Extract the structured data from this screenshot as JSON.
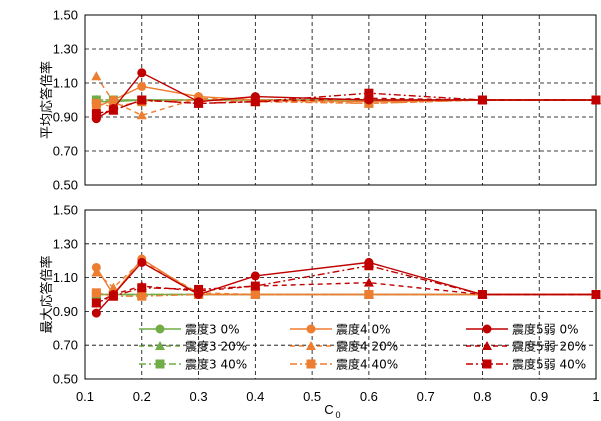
{
  "chart_data": [
    {
      "type": "line",
      "ylabel": "平均応答倍率",
      "ylim": [
        0.5,
        1.5
      ],
      "yticks": [
        "1.50",
        "1.30",
        "1.10",
        "0.90",
        "0.70",
        "0.50"
      ],
      "xlim": [
        0.1,
        1.0
      ],
      "grid": true,
      "series": [
        {
          "name": "震度3 0%",
          "color": "#70ad47",
          "dash": "solid",
          "marker": "circle",
          "x": [
            0.12,
            0.15,
            0.2,
            0.3,
            0.4,
            0.6,
            0.8,
            1.0
          ],
          "y": [
            0.99,
            0.99,
            1.0,
            1.0,
            1.0,
            1.0,
            1.0,
            1.0
          ]
        },
        {
          "name": "震度3 20%",
          "color": "#70ad47",
          "dash": "dashed",
          "marker": "triangle",
          "x": [
            0.12,
            0.15,
            0.2,
            0.3,
            0.4,
            0.6,
            0.8,
            1.0
          ],
          "y": [
            1.0,
            1.0,
            1.0,
            1.0,
            1.0,
            1.0,
            1.0,
            1.0
          ]
        },
        {
          "name": "震度3 40%",
          "color": "#70ad47",
          "dash": "dashdot",
          "marker": "square",
          "x": [
            0.12,
            0.15,
            0.2,
            0.3,
            0.4,
            0.6,
            0.8,
            1.0
          ],
          "y": [
            1.0,
            1.0,
            1.0,
            1.0,
            1.0,
            1.0,
            1.0,
            1.0
          ]
        },
        {
          "name": "震度4 0%",
          "color": "#ed7d31",
          "dash": "solid",
          "marker": "circle",
          "x": [
            0.12,
            0.15,
            0.2,
            0.3,
            0.4,
            0.6,
            0.8,
            1.0
          ],
          "y": [
            0.96,
            1.0,
            1.08,
            1.02,
            1.0,
            0.99,
            1.0,
            1.0
          ]
        },
        {
          "name": "震度4 20%",
          "color": "#ed7d31",
          "dash": "dashed",
          "marker": "triangle",
          "x": [
            0.12,
            0.15,
            0.2,
            0.3,
            0.4,
            0.6,
            0.8,
            1.0
          ],
          "y": [
            1.14,
            0.99,
            0.91,
            1.01,
            1.0,
            0.98,
            1.0,
            1.0
          ]
        },
        {
          "name": "震度4 40%",
          "color": "#ed7d31",
          "dash": "dashdot",
          "marker": "square",
          "x": [
            0.12,
            0.15,
            0.2,
            0.3,
            0.4,
            0.6,
            0.8,
            1.0
          ],
          "y": [
            0.98,
            0.96,
            0.99,
            1.0,
            0.99,
            0.98,
            1.0,
            1.0
          ]
        },
        {
          "name": "震度5弱 0%",
          "color": "#c00000",
          "dash": "solid",
          "marker": "circle",
          "x": [
            0.12,
            0.15,
            0.2,
            0.3,
            0.4,
            0.6,
            0.8,
            1.0
          ],
          "y": [
            0.89,
            0.95,
            1.16,
            0.99,
            1.02,
            1.0,
            1.0,
            1.0
          ]
        },
        {
          "name": "震度5弱 20%",
          "color": "#c00000",
          "dash": "dashed",
          "marker": "triangle",
          "x": [
            0.12,
            0.15,
            0.2,
            0.3,
            0.4,
            0.6,
            0.8,
            1.0
          ],
          "y": [
            0.91,
            0.94,
            1.0,
            0.98,
            0.99,
            1.01,
            1.0,
            1.0
          ]
        },
        {
          "name": "震度5弱 40%",
          "color": "#c00000",
          "dash": "dashdot",
          "marker": "square",
          "x": [
            0.12,
            0.15,
            0.2,
            0.3,
            0.4,
            0.6,
            0.8,
            1.0
          ],
          "y": [
            0.92,
            0.94,
            1.0,
            0.98,
            0.99,
            1.04,
            1.0,
            1.0
          ]
        }
      ]
    },
    {
      "type": "line",
      "ylabel": "最大応答倍率",
      "ylim": [
        0.5,
        1.5
      ],
      "yticks": [
        "1.50",
        "1.30",
        "1.10",
        "0.90",
        "0.70",
        "0.50"
      ],
      "xlabel_main": "C",
      "xlabel_sub": "0",
      "xlim": [
        0.1,
        1.0
      ],
      "xticks": [
        "0.1",
        "0.2",
        "0.3",
        "0.4",
        "0.5",
        "0.6",
        "0.7",
        "0.8",
        "0.9",
        "1"
      ],
      "grid": true,
      "legend": "bottom, 3 columns",
      "series": [
        {
          "name": "震度3 0%",
          "color": "#70ad47",
          "dash": "solid",
          "marker": "circle",
          "x": [
            0.12,
            0.15,
            0.2,
            0.3,
            0.4,
            0.6,
            0.8,
            1.0
          ],
          "y": [
            1.0,
            1.0,
            1.0,
            1.0,
            1.0,
            1.0,
            1.0,
            1.0
          ]
        },
        {
          "name": "震度3 20%",
          "color": "#70ad47",
          "dash": "dashed",
          "marker": "triangle",
          "x": [
            0.12,
            0.15,
            0.2,
            0.3,
            0.4,
            0.6,
            0.8,
            1.0
          ],
          "y": [
            1.0,
            1.0,
            1.0,
            1.0,
            1.0,
            1.0,
            1.0,
            1.0
          ]
        },
        {
          "name": "震度3 40%",
          "color": "#70ad47",
          "dash": "dashdot",
          "marker": "square",
          "x": [
            0.12,
            0.15,
            0.2,
            0.3,
            0.4,
            0.6,
            0.8,
            1.0
          ],
          "y": [
            1.0,
            1.0,
            1.0,
            1.0,
            1.0,
            1.0,
            1.0,
            1.0
          ]
        },
        {
          "name": "震度4 0%",
          "color": "#ed7d31",
          "dash": "solid",
          "marker": "circle",
          "x": [
            0.12,
            0.15,
            0.2,
            0.3,
            0.4,
            0.6,
            0.8,
            1.0
          ],
          "y": [
            1.16,
            1.0,
            1.21,
            1.0,
            1.0,
            1.0,
            1.0,
            1.0
          ]
        },
        {
          "name": "震度4 20%",
          "color": "#ed7d31",
          "dash": "dashed",
          "marker": "triangle",
          "x": [
            0.12,
            0.15,
            0.2,
            0.3,
            0.4,
            0.6,
            0.8,
            1.0
          ],
          "y": [
            1.13,
            1.04,
            1.2,
            1.01,
            1.0,
            1.0,
            1.0,
            1.0
          ]
        },
        {
          "name": "震度4 40%",
          "color": "#ed7d31",
          "dash": "dashdot",
          "marker": "square",
          "x": [
            0.12,
            0.15,
            0.2,
            0.3,
            0.4,
            0.6,
            0.8,
            1.0
          ],
          "y": [
            1.01,
            0.99,
            0.99,
            1.0,
            1.0,
            1.0,
            1.0,
            1.0
          ]
        },
        {
          "name": "震度5弱 0%",
          "color": "#c00000",
          "dash": "solid",
          "marker": "circle",
          "x": [
            0.12,
            0.15,
            0.2,
            0.3,
            0.4,
            0.6,
            0.8,
            1.0
          ],
          "y": [
            0.89,
            1.0,
            1.19,
            1.0,
            1.11,
            1.19,
            1.0,
            1.0
          ]
        },
        {
          "name": "震度5弱 20%",
          "color": "#c00000",
          "dash": "dashed",
          "marker": "triangle",
          "x": [
            0.12,
            0.15,
            0.2,
            0.3,
            0.4,
            0.6,
            0.8,
            1.0
          ],
          "y": [
            0.95,
            1.0,
            1.05,
            1.02,
            1.05,
            1.07,
            1.0,
            1.0
          ]
        },
        {
          "name": "震度5弱 40%",
          "color": "#c00000",
          "dash": "dashdot",
          "marker": "square",
          "x": [
            0.12,
            0.15,
            0.2,
            0.3,
            0.4,
            0.6,
            0.8,
            1.0
          ],
          "y": [
            0.95,
            0.99,
            1.04,
            1.03,
            1.05,
            1.17,
            1.0,
            1.0
          ]
        }
      ]
    }
  ]
}
